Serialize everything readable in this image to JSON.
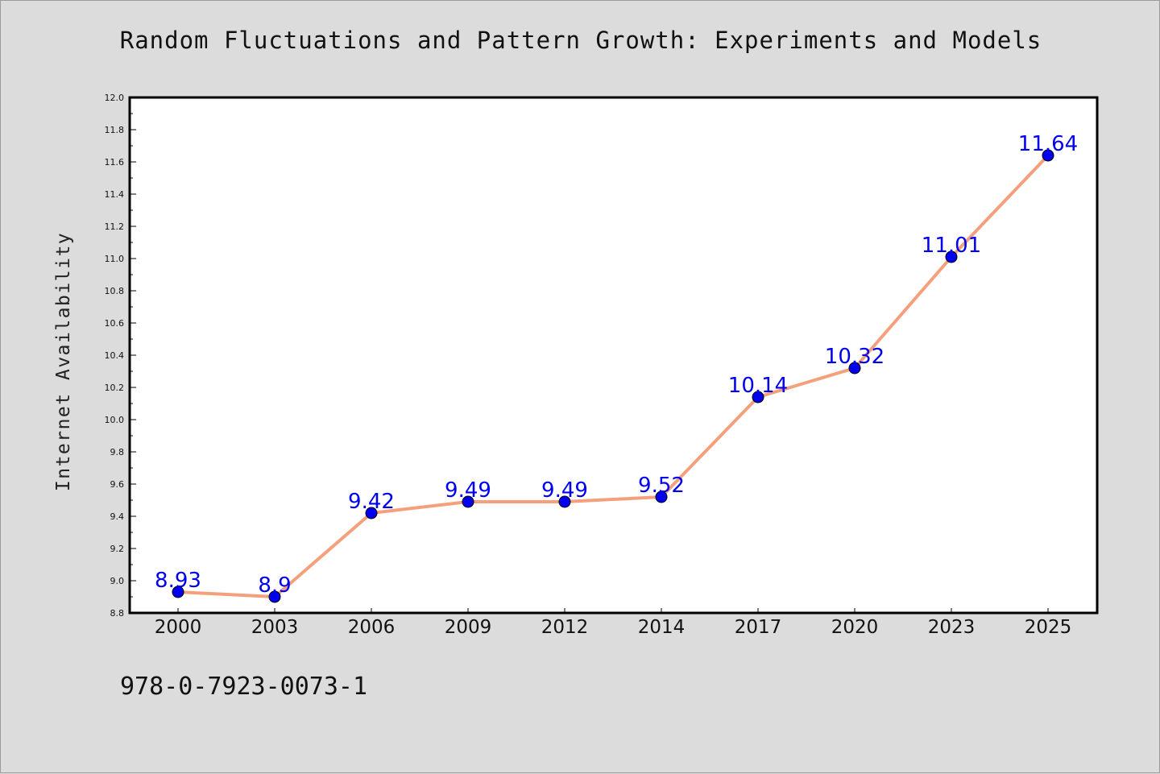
{
  "chart_data": {
    "type": "line",
    "title": "Random Fluctuations and Pattern Growth: Experiments and Models",
    "ylabel": "Internet Availability",
    "xlabel": "",
    "categories": [
      "2000",
      "2003",
      "2006",
      "2009",
      "2012",
      "2014",
      "2017",
      "2020",
      "2023",
      "2025"
    ],
    "series": [
      {
        "values": [
          8.93,
          8.9,
          9.42,
          9.49,
          9.49,
          9.52,
          10.14,
          10.32,
          11.01,
          11.64
        ]
      }
    ],
    "data_labels": [
      "8.93",
      "8.9",
      "9.42",
      "9.49",
      "9.49",
      "9.52",
      "10.14",
      "10.32",
      "11.01",
      "11.64"
    ],
    "ylim": [
      8.8,
      12.0
    ],
    "yticks": [
      "8.8",
      "9.0",
      "9.2",
      "9.4",
      "9.6",
      "9.8",
      "10.0",
      "10.2",
      "10.4",
      "10.6",
      "10.8",
      "11.0",
      "11.2",
      "11.4",
      "11.6",
      "11.8",
      "12.0"
    ],
    "grid": false,
    "colors": {
      "line": "#f4a07c",
      "marker": "#0000ee",
      "label": "#0000ee",
      "background": "#dcdcdc",
      "plot_background": "#ffffff"
    }
  },
  "footer": {
    "code": "978-0-7923-0073-1"
  }
}
